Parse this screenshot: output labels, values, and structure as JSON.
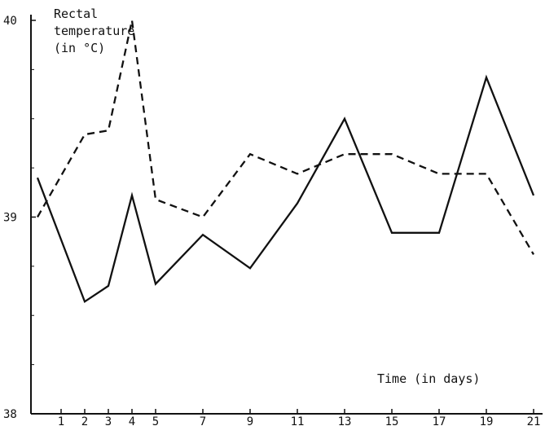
{
  "chart_data": {
    "type": "line",
    "xlabel": "Time (in days)",
    "ylabel_lines": [
      "Rectal",
      "temperature",
      "(in °C)"
    ],
    "x_ticks": [
      1,
      2,
      3,
      4,
      5,
      7,
      9,
      11,
      13,
      15,
      17,
      19,
      21
    ],
    "y_ticks": [
      38,
      39,
      40
    ],
    "ylim": [
      38,
      40
    ],
    "grid": false,
    "series": [
      {
        "style": "solid",
        "x": [
          0,
          2,
          3,
          4,
          5,
          7,
          9,
          11,
          13,
          15,
          17,
          19,
          21
        ],
        "y": [
          39.2,
          38.57,
          38.65,
          39.11,
          38.66,
          38.91,
          38.74,
          39.07,
          39.5,
          38.92,
          38.92,
          39.71,
          39.11
        ]
      },
      {
        "style": "dashed",
        "x": [
          0,
          2,
          3,
          4,
          5,
          7,
          9,
          11,
          13,
          15,
          17,
          19,
          21
        ],
        "y": [
          39.0,
          39.42,
          39.44,
          40.0,
          39.09,
          39.0,
          39.32,
          39.22,
          39.32,
          39.32,
          39.22,
          39.22,
          38.81
        ]
      }
    ]
  }
}
